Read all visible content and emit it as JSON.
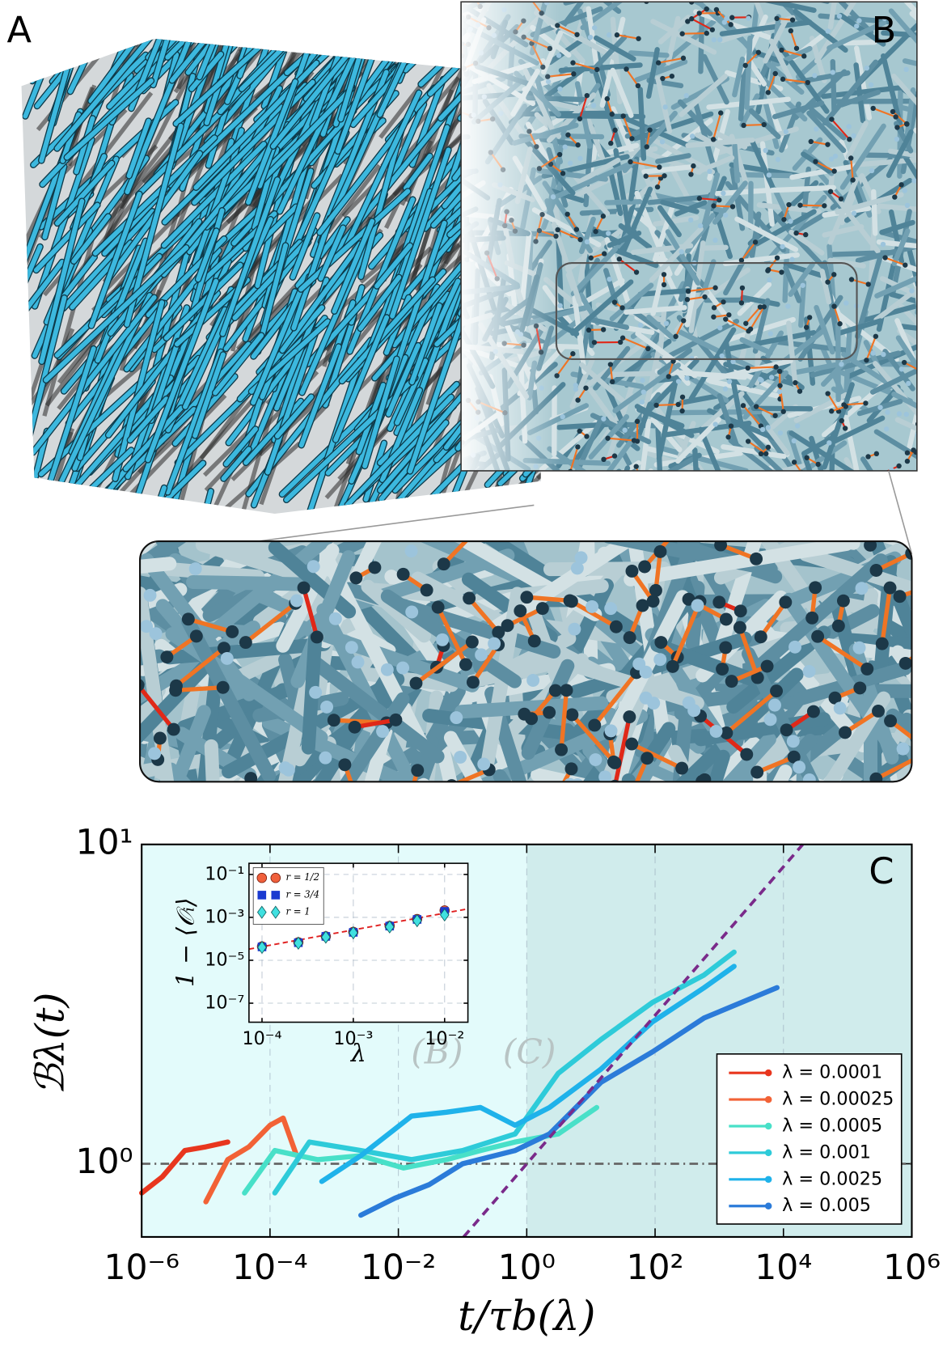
{
  "figure": {
    "panel_a_label": "A",
    "panel_b_label": "B"
  },
  "chart_data": [
    {
      "type": "line",
      "panel_label": "C",
      "x_label": "t/τb(λ)",
      "y_label": "ℬλ(t)",
      "xscale": "log",
      "yscale": "log",
      "xlim": [
        1e-06,
        1000000.0
      ],
      "ylim": [
        0.59,
        10
      ],
      "xticks": [
        {
          "value": 1e-06,
          "label": "10⁻⁶"
        },
        {
          "value": 0.0001,
          "label": "10⁻⁴"
        },
        {
          "value": 0.01,
          "label": "10⁻²"
        },
        {
          "value": 1,
          "label": "10⁰"
        },
        {
          "value": 100,
          "label": "10²"
        },
        {
          "value": 10000.0,
          "label": "10⁴"
        },
        {
          "value": 1000000.0,
          "label": "10⁶"
        }
      ],
      "yticks": [
        {
          "value": 1,
          "label": "10⁰"
        },
        {
          "value": 10,
          "label": "10¹"
        }
      ],
      "grid_axis": "x",
      "hline": 1,
      "regions": [
        {
          "xlim": [
            1e-06,
            1
          ],
          "color": "#e3fbfb"
        },
        {
          "xlim": [
            1,
            1000000.0
          ],
          "color": "#d0ecec"
        }
      ],
      "annotations": [
        {
          "text": "(B)",
          "x": 0.04
        },
        {
          "text": "(C)",
          "x": 1.1
        }
      ],
      "annotation_y": 2.2,
      "reference_line": {
        "x": [
          0.104,
          20000
        ],
        "values": [
          0.59,
          10
        ],
        "color": "#7a2a8a"
      },
      "legend": "lower right",
      "series": [
        {
          "name": "λ = 0.0001",
          "color": "#e8361e",
          "x": [
            1e-06,
            2.1e-06,
            4.7e-06,
            1e-05,
            2.2e-05
          ],
          "values": [
            0.81,
            0.91,
            1.1,
            1.13,
            1.17
          ]
        },
        {
          "name": "λ = 0.00025",
          "color": "#f26236",
          "x": [
            1e-05,
            2.2e-05,
            4.7e-05,
            0.0001,
            0.00016,
            0.00026
          ],
          "values": [
            0.76,
            1.03,
            1.13,
            1.32,
            1.39,
            1.06
          ]
        },
        {
          "name": "λ = 0.0005",
          "color": "#48e0c8",
          "x": [
            4e-05,
            0.000119,
            0.00055,
            0.0026,
            0.012,
            0.056,
            0.19,
            0.66,
            3.1,
            12.3
          ],
          "values": [
            0.81,
            1.1,
            1.03,
            1.06,
            0.97,
            1.03,
            1.1,
            1.17,
            1.24,
            1.5
          ]
        },
        {
          "name": "λ = 0.001",
          "color": "#2ecbd9",
          "x": [
            0.000119,
            0.00041,
            0.0026,
            0.016,
            0.1,
            0.66,
            3.1,
            14.4,
            91,
            580,
            1700
          ],
          "values": [
            0.81,
            1.17,
            1.1,
            1.03,
            1.1,
            1.24,
            1.92,
            2.45,
            3.2,
            3.9,
            4.6
          ]
        },
        {
          "name": "λ = 0.0025",
          "color": "#1fb2ea",
          "x": [
            0.00064,
            0.0026,
            0.016,
            0.056,
            0.19,
            0.66,
            2.26,
            14.4,
            91,
            580,
            1700
          ],
          "values": [
            0.88,
            1.06,
            1.41,
            1.45,
            1.5,
            1.32,
            1.5,
            1.98,
            2.78,
            3.56,
            4.15
          ]
        },
        {
          "name": "λ = 0.005",
          "color": "#2b7bd9",
          "x": [
            0.0026,
            0.0088,
            0.03,
            0.1,
            0.66,
            2.26,
            14.4,
            91,
            580,
            7940
          ],
          "values": [
            0.69,
            0.78,
            0.86,
            1.0,
            1.1,
            1.24,
            1.8,
            2.24,
            2.86,
            3.56
          ]
        }
      ]
    },
    {
      "type": "scatter",
      "x_label": "λ",
      "y_label": "1 − ⟨𝒪ᵢ⟩",
      "xscale": "log",
      "yscale": "log",
      "xlim": [
        7.2e-05,
        0.018
      ],
      "ylim": [
        1.3e-08,
        0.33
      ],
      "xticks": [
        {
          "value": 0.0001,
          "label": "10⁻⁴"
        },
        {
          "value": 0.001,
          "label": "10⁻³"
        },
        {
          "value": 0.01,
          "label": "10⁻²"
        }
      ],
      "yticks": [
        {
          "value": 0.1,
          "label": "10⁻¹"
        },
        {
          "value": 0.001,
          "label": "10⁻³"
        },
        {
          "value": 1e-05,
          "label": "10⁻⁵"
        },
        {
          "value": 1e-07,
          "label": "10⁻⁷"
        }
      ],
      "grid": true,
      "legend": "upper left",
      "fit_line": {
        "x": [
          7.2e-05,
          0.018
        ],
        "values": [
          3.3e-05,
          0.0025
        ],
        "color": "#e02020"
      },
      "x": [
        0.0001,
        0.00025,
        0.0005,
        0.001,
        0.0025,
        0.005,
        0.01
      ],
      "series": [
        {
          "name": "r = 1/2",
          "marker": "circle",
          "color": "#f0603c",
          "values": [
            4.4e-05,
            6.9e-05,
            0.00013,
            0.00021,
            0.0004,
            0.00083,
            0.0021
          ]
        },
        {
          "name": "r = 3/4",
          "marker": "square",
          "color": "#1a3ad0",
          "values": [
            4.2e-05,
            6.6e-05,
            0.00013,
            0.0002,
            0.00039,
            0.0008,
            0.0019
          ]
        },
        {
          "name": "r = 1",
          "marker": "diamond",
          "color": "#40e0e0",
          "values": [
            4e-05,
            6.3e-05,
            0.00012,
            0.00019,
            0.00036,
            0.0007,
            0.0013
          ]
        }
      ]
    }
  ]
}
